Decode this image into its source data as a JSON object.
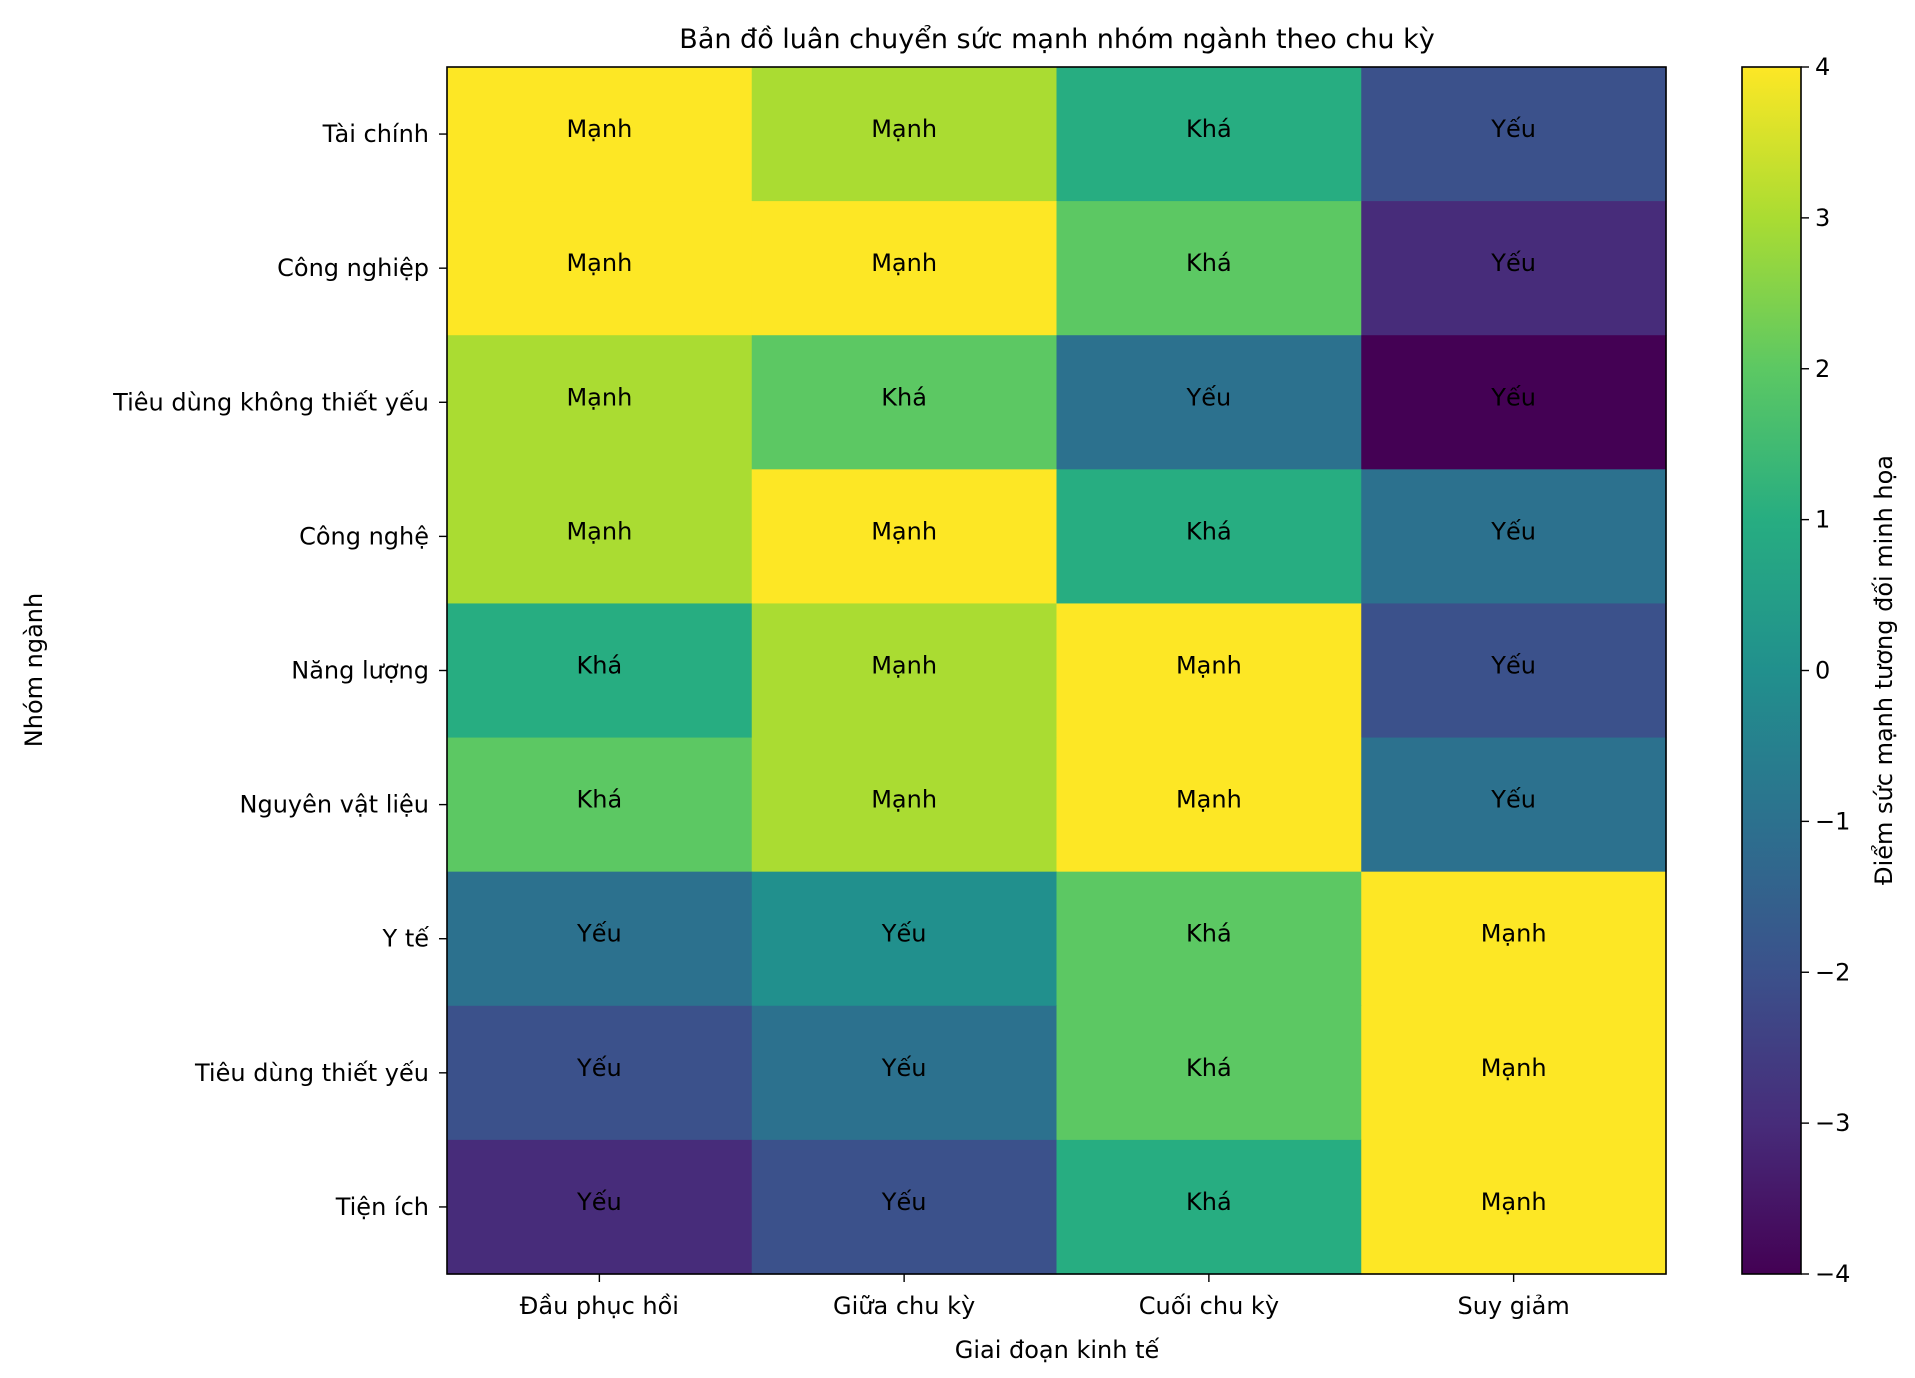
{
  "chart_data": {
    "type": "heatmap",
    "title": "Bản đồ luân chuyển sức mạnh nhóm ngành theo chu kỳ",
    "xlabel": "Giai đoạn kinh tế",
    "ylabel": "Nhóm ngành",
    "x_categories": [
      "Đầu phục hồi",
      "Giữa chu kỳ",
      "Cuối chu kỳ",
      "Suy giảm"
    ],
    "y_categories": [
      "Tài chính",
      "Công nghiệp",
      "Tiêu dùng không thiết yếu",
      "Công nghệ",
      "Năng lượng",
      "Nguyên vật liệu",
      "Y tế",
      "Tiêu dùng thiết yếu",
      "Tiện ích"
    ],
    "values": [
      [
        4,
        3,
        1,
        -2
      ],
      [
        4,
        4,
        2,
        -3
      ],
      [
        3,
        2,
        -1,
        -4
      ],
      [
        3,
        4,
        1,
        -1
      ],
      [
        1,
        3,
        4,
        -2
      ],
      [
        2,
        3,
        4,
        -1
      ],
      [
        -1,
        0,
        2,
        4
      ],
      [
        -2,
        -1,
        2,
        4
      ],
      [
        -3,
        -2,
        1,
        4
      ]
    ],
    "cell_labels": [
      [
        "Mạnh",
        "Mạnh",
        "Khá",
        "Yếu"
      ],
      [
        "Mạnh",
        "Mạnh",
        "Khá",
        "Yếu"
      ],
      [
        "Mạnh",
        "Khá",
        "Yếu",
        "Yếu"
      ],
      [
        "Mạnh",
        "Mạnh",
        "Khá",
        "Yếu"
      ],
      [
        "Khá",
        "Mạnh",
        "Mạnh",
        "Yếu"
      ],
      [
        "Khá",
        "Mạnh",
        "Mạnh",
        "Yếu"
      ],
      [
        "Yếu",
        "Yếu",
        "Khá",
        "Mạnh"
      ],
      [
        "Yếu",
        "Yếu",
        "Khá",
        "Mạnh"
      ],
      [
        "Yếu",
        "Yếu",
        "Khá",
        "Mạnh"
      ]
    ],
    "colorbar": {
      "label": "Điểm sức mạnh tương đối minh họa",
      "range": [
        -4,
        4
      ],
      "ticks": [
        4,
        3,
        2,
        1,
        0,
        -1,
        -2,
        -3,
        -4
      ],
      "tick_labels": [
        "4",
        "3",
        "2",
        "1",
        "0",
        "−1",
        "−2",
        "−3",
        "−4"
      ],
      "colormap": "viridis"
    },
    "grid": false
  }
}
